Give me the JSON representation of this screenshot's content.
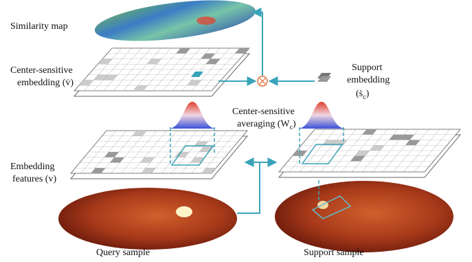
{
  "labels": {
    "similarity_map": "Similarity map",
    "center_sensitive_embedding": {
      "line1": "Center-sensitive",
      "line2": "embedding (v̇)"
    },
    "support_embedding": {
      "line1": "Support",
      "line2": "embedding",
      "before": "(ṡ",
      "sub": "c",
      "after": ")"
    },
    "center_sensitive_averaging": {
      "line1": "Center-sensitive",
      "before": "averaging (W",
      "sub": "c",
      "after": ")"
    },
    "embedding_features": {
      "line1": "Embedding",
      "line2": "features (v)"
    },
    "query_sample": "Query sample",
    "support_sample": "Support sample"
  }
}
